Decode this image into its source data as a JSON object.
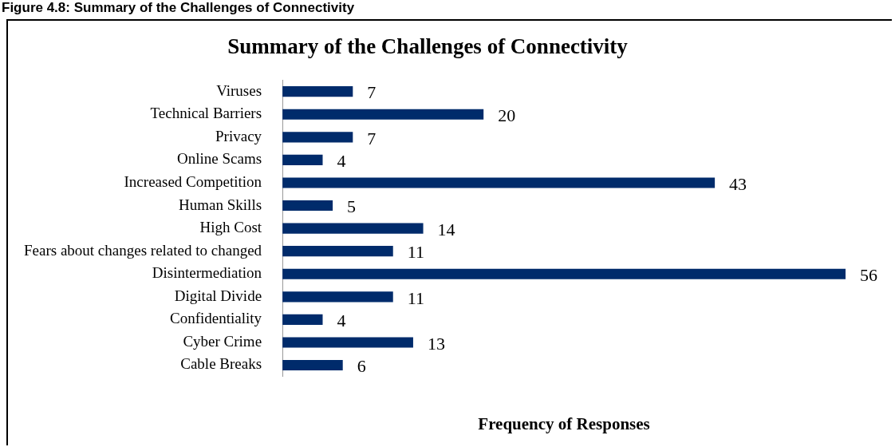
{
  "chart_data": {
    "type": "bar",
    "orientation": "horizontal",
    "title": "Summary of the Challenges of Connectivity",
    "xlabel": "Frequency of Responses",
    "categories": [
      "Viruses",
      "Technical Barriers",
      "Privacy",
      "Online Scams",
      "Increased Competition",
      "Human Skills",
      "High Cost",
      "Fears about changes related to changed",
      "Disintermediation",
      "Digital Divide",
      "Confidentiality",
      "Cyber Crime",
      "Cable Breaks"
    ],
    "values": [
      7,
      20,
      7,
      4,
      43,
      5,
      14,
      11,
      56,
      11,
      4,
      13,
      6
    ],
    "color": "#002b6b",
    "data_labels": true,
    "annotations": [
      "Figure 4.8: Summary of the Challenges of Connectivity"
    ]
  }
}
